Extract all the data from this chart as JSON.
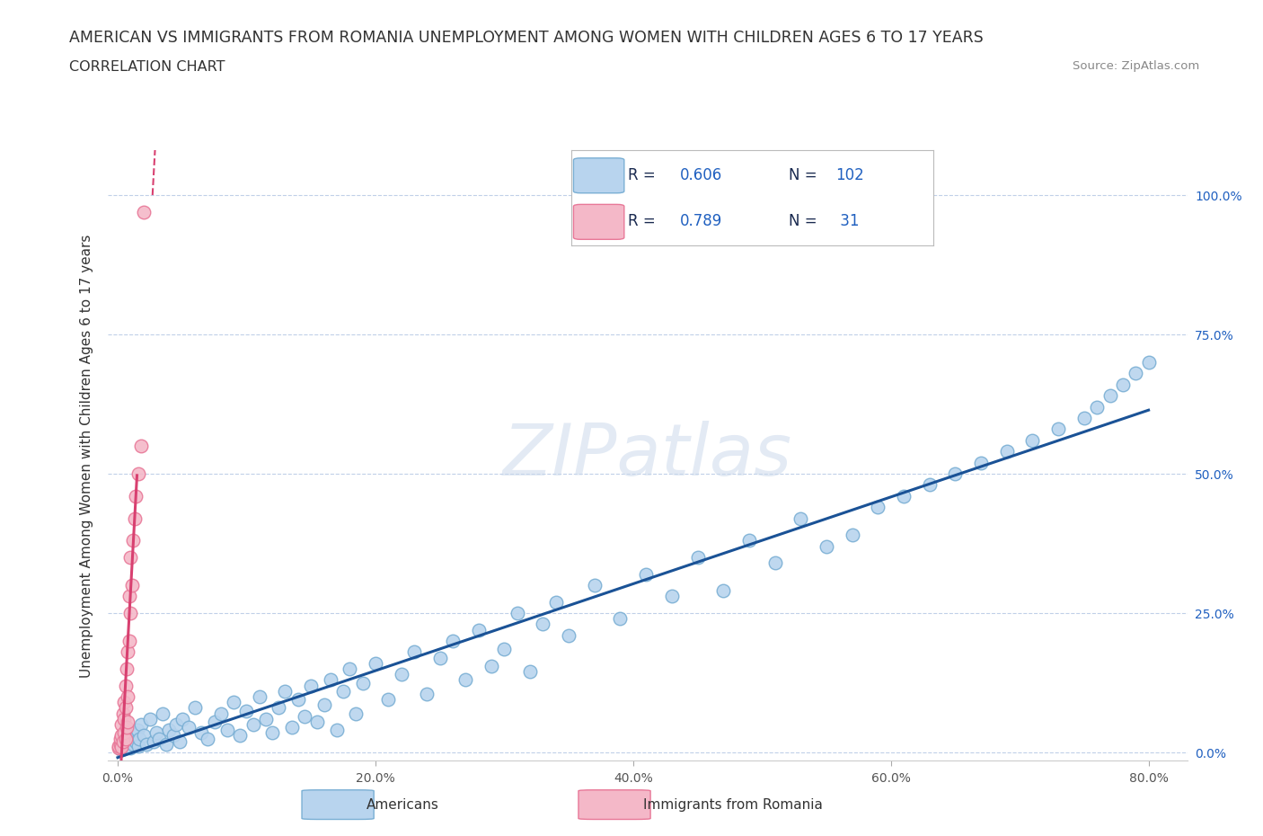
{
  "title": "AMERICAN VS IMMIGRANTS FROM ROMANIA UNEMPLOYMENT AMONG WOMEN WITH CHILDREN AGES 6 TO 17 YEARS",
  "subtitle": "CORRELATION CHART",
  "source": "Source: ZipAtlas.com",
  "ylabel": "Unemployment Among Women with Children Ages 6 to 17 years",
  "x_tick_labels": [
    "0.0%",
    "20.0%",
    "40.0%",
    "60.0%",
    "80.0%"
  ],
  "x_tick_values": [
    0.0,
    0.2,
    0.4,
    0.6,
    0.8
  ],
  "y_tick_labels": [
    "0.0%",
    "25.0%",
    "50.0%",
    "75.0%",
    "100.0%"
  ],
  "y_tick_values": [
    0.0,
    0.25,
    0.5,
    0.75,
    1.0
  ],
  "xlim": [
    -0.008,
    0.83
  ],
  "ylim": [
    -0.015,
    1.08
  ],
  "R_american": 0.606,
  "N_american": 102,
  "R_romania": 0.789,
  "N_romania": 31,
  "blue_face": "#b8d4ee",
  "blue_edge": "#7aafd4",
  "pink_face": "#f4b8c8",
  "pink_edge": "#e87898",
  "line_blue": "#1a5296",
  "line_pink": "#d84070",
  "legend_text_dark": "#1a2a50",
  "legend_val_color": "#1a5296",
  "watermark": "ZIPatlas",
  "title_fontsize": 12.5,
  "subtitle_fontsize": 11.5,
  "source_fontsize": 9.5,
  "tick_fontsize": 10,
  "ylabel_fontsize": 11,
  "legend_fontsize": 12,
  "americans_x": [
    0.002,
    0.003,
    0.004,
    0.005,
    0.005,
    0.006,
    0.007,
    0.008,
    0.008,
    0.009,
    0.01,
    0.01,
    0.011,
    0.012,
    0.013,
    0.014,
    0.015,
    0.016,
    0.017,
    0.018,
    0.02,
    0.022,
    0.025,
    0.028,
    0.03,
    0.032,
    0.035,
    0.038,
    0.04,
    0.043,
    0.045,
    0.048,
    0.05,
    0.055,
    0.06,
    0.065,
    0.07,
    0.075,
    0.08,
    0.085,
    0.09,
    0.095,
    0.1,
    0.105,
    0.11,
    0.115,
    0.12,
    0.125,
    0.13,
    0.135,
    0.14,
    0.145,
    0.15,
    0.155,
    0.16,
    0.165,
    0.17,
    0.175,
    0.18,
    0.185,
    0.19,
    0.2,
    0.21,
    0.22,
    0.23,
    0.24,
    0.25,
    0.26,
    0.27,
    0.28,
    0.29,
    0.3,
    0.31,
    0.32,
    0.33,
    0.34,
    0.35,
    0.37,
    0.39,
    0.41,
    0.43,
    0.45,
    0.47,
    0.49,
    0.51,
    0.53,
    0.55,
    0.57,
    0.59,
    0.61,
    0.63,
    0.65,
    0.67,
    0.69,
    0.71,
    0.73,
    0.75,
    0.76,
    0.77,
    0.78,
    0.79,
    0.8
  ],
  "americans_y": [
    0.01,
    0.005,
    0.008,
    0.012,
    0.006,
    0.015,
    0.02,
    0.01,
    0.025,
    0.018,
    0.03,
    0.008,
    0.022,
    0.015,
    0.035,
    0.02,
    0.04,
    0.012,
    0.025,
    0.05,
    0.03,
    0.015,
    0.06,
    0.02,
    0.035,
    0.025,
    0.07,
    0.015,
    0.04,
    0.03,
    0.05,
    0.02,
    0.06,
    0.045,
    0.08,
    0.035,
    0.025,
    0.055,
    0.07,
    0.04,
    0.09,
    0.03,
    0.075,
    0.05,
    0.1,
    0.06,
    0.035,
    0.08,
    0.11,
    0.045,
    0.095,
    0.065,
    0.12,
    0.055,
    0.085,
    0.13,
    0.04,
    0.11,
    0.15,
    0.07,
    0.125,
    0.16,
    0.095,
    0.14,
    0.18,
    0.105,
    0.17,
    0.2,
    0.13,
    0.22,
    0.155,
    0.185,
    0.25,
    0.145,
    0.23,
    0.27,
    0.21,
    0.3,
    0.24,
    0.32,
    0.28,
    0.35,
    0.29,
    0.38,
    0.34,
    0.42,
    0.37,
    0.39,
    0.44,
    0.46,
    0.48,
    0.5,
    0.52,
    0.54,
    0.56,
    0.58,
    0.6,
    0.62,
    0.64,
    0.66,
    0.68,
    0.7
  ],
  "romania_x": [
    0.001,
    0.001,
    0.002,
    0.002,
    0.003,
    0.003,
    0.003,
    0.004,
    0.004,
    0.005,
    0.005,
    0.005,
    0.006,
    0.006,
    0.006,
    0.007,
    0.007,
    0.008,
    0.008,
    0.008,
    0.009,
    0.009,
    0.01,
    0.01,
    0.011,
    0.012,
    0.013,
    0.014,
    0.016,
    0.018,
    0.02
  ],
  "romania_y": [
    0.008,
    0.012,
    0.015,
    0.025,
    0.01,
    0.03,
    0.05,
    0.02,
    0.07,
    0.035,
    0.06,
    0.09,
    0.025,
    0.08,
    0.12,
    0.045,
    0.15,
    0.055,
    0.1,
    0.18,
    0.2,
    0.28,
    0.25,
    0.35,
    0.3,
    0.38,
    0.42,
    0.46,
    0.5,
    0.55,
    0.97
  ]
}
